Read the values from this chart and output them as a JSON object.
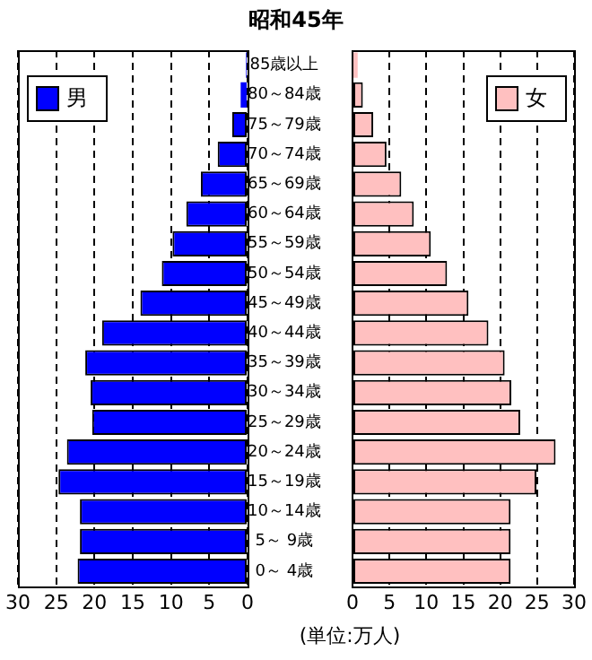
{
  "chart_data": [
    {
      "type": "bar",
      "orientation": "horizontal",
      "title": "昭和45年",
      "categories": [
        "85歳以上",
        "80～84歳",
        "75～79歳",
        "70～74歳",
        "65～69歳",
        "60～64歳",
        "55～59歳",
        "50～54歳",
        "45～49歳",
        "40～44歳",
        "35～39歳",
        "30～34歳",
        "25～29歳",
        "20～24歳",
        "15～19歳",
        "10～14歳",
        "5～ 9歳",
        "0～ 4歳"
      ],
      "series": [
        {
          "name": "男",
          "color": "#0000ff",
          "values": [
            0.2,
            0.9,
            2.0,
            3.9,
            6.1,
            8.0,
            9.8,
            11.2,
            14.0,
            19.0,
            21.2,
            20.5,
            20.3,
            23.6,
            24.7,
            21.9,
            21.9,
            22.2
          ]
        }
      ],
      "xlim": [
        30,
        0
      ],
      "xticks": [
        30,
        25,
        20,
        15,
        10,
        5,
        0
      ],
      "grid": "x",
      "legend": "top left"
    },
    {
      "type": "bar",
      "orientation": "horizontal",
      "categories": [
        null,
        null,
        null,
        null,
        null,
        null,
        null,
        null,
        null,
        null,
        null,
        null,
        null,
        null,
        null,
        null,
        null,
        null
      ],
      "series": [
        {
          "name": "女",
          "color": "#ffc0c0",
          "values": [
            0.7,
            1.4,
            2.8,
            4.6,
            6.6,
            8.3,
            10.6,
            12.8,
            15.7,
            18.4,
            20.6,
            21.5,
            22.7,
            27.5,
            24.9,
            21.4,
            21.4,
            21.4
          ]
        }
      ],
      "xlim": [
        0,
        30
      ],
      "xticks": [
        0,
        5,
        10,
        15,
        20,
        25,
        30
      ],
      "grid": "x",
      "legend": "top right",
      "tick_labels": "x",
      "annotations": [
        "(単位:万人)"
      ]
    }
  ]
}
